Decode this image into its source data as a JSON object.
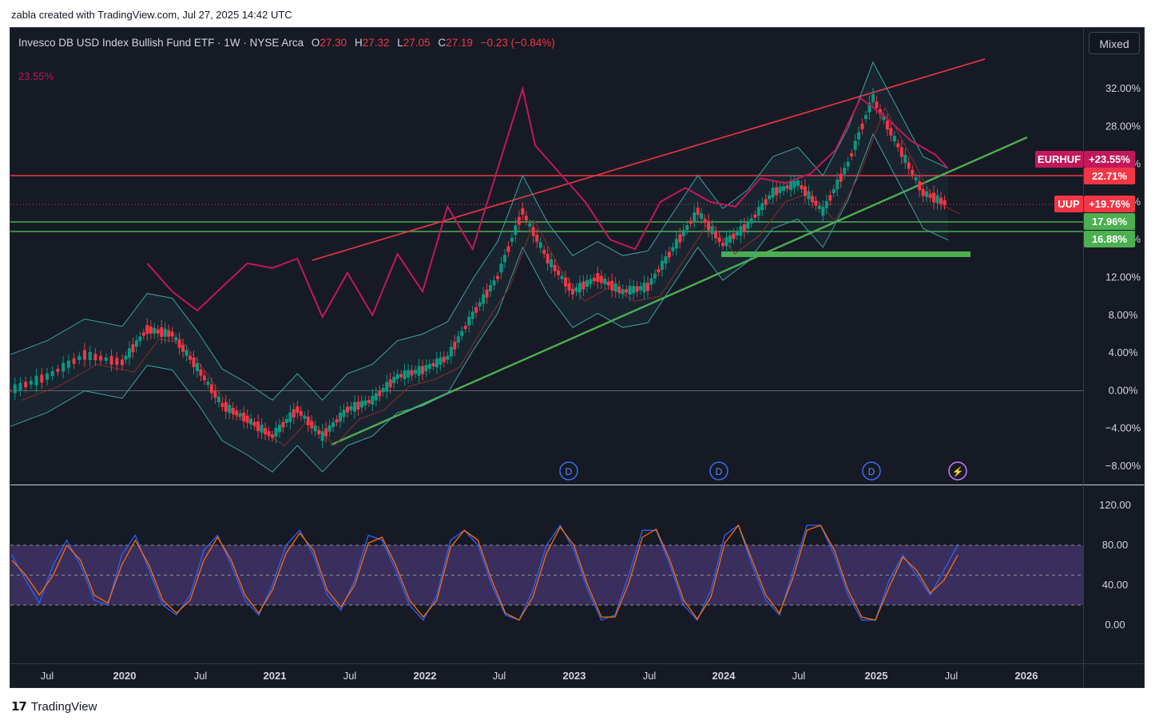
{
  "caption": "zabla created with TradingView.com, Jul 27, 2025 14:42 UTC",
  "brand": "TradingView",
  "header": {
    "symbol_title": "Invesco DB USD Index Bullish Fund ETF · 1W · NYSE Arca",
    "open_label": "O",
    "open": "27.30",
    "high_label": "H",
    "high": "27.32",
    "low_label": "L",
    "low": "27.05",
    "close_label": "C",
    "close": "27.19",
    "change": "−0.23 (−0.84%)",
    "overlay_pct": "23.55%",
    "mode_button": "Mixed"
  },
  "colors": {
    "background": "#161a25",
    "up_candle": "#089981",
    "down_candle": "#f23645",
    "eurhuf_line": "#c2185b",
    "resistance_line": "#f23645",
    "support_line": "#4caf50",
    "bb_basis": "#8b2b2b",
    "bb_band": "#3aa4a0",
    "stoch_k": "#2962ff",
    "stoch_d": "#ff6d00",
    "stoch_band": "#7e57c2"
  },
  "chart_data": [
    {
      "type": "line",
      "title": "Invesco DB USD Index Bullish Fund ETF · 1W · NYSE Arca",
      "y_unit": "%",
      "ylim": [
        -9.5,
        40
      ],
      "y_ticks": [
        "32.00%",
        "28.00%",
        "24.00%",
        "20.00%",
        "16.00%",
        "12.00%",
        "8.00%",
        "4.00%",
        "0.00%",
        "−4.00%",
        "−8.00%"
      ],
      "x_ticks": [
        "Jul",
        "2020",
        "Jul",
        "2021",
        "Jul",
        "2022",
        "Jul",
        "2023",
        "Jul",
        "2024",
        "Jul",
        "2025",
        "Jul",
        "2026"
      ],
      "series": [
        {
          "name": "UUP",
          "style": "candles",
          "points": [
            [
              "2019-04",
              0.0
            ],
            [
              "2019-07",
              1.5
            ],
            [
              "2019-10",
              3.8
            ],
            [
              "2020-01",
              3.0
            ],
            [
              "2020-03",
              6.5
            ],
            [
              "2020-05",
              6.0
            ],
            [
              "2020-07",
              2.5
            ],
            [
              "2020-09",
              -1.5
            ],
            [
              "2020-11",
              -3.0
            ],
            [
              "2021-01",
              -4.8
            ],
            [
              "2021-03",
              -2.0
            ],
            [
              "2021-05",
              -4.8
            ],
            [
              "2021-07",
              -2.0
            ],
            [
              "2021-09",
              -1.0
            ],
            [
              "2021-11",
              1.5
            ],
            [
              "2022-01",
              2.2
            ],
            [
              "2022-03",
              3.5
            ],
            [
              "2022-05",
              8.0
            ],
            [
              "2022-07",
              12.0
            ],
            [
              "2022-09",
              19.0
            ],
            [
              "2022-11",
              14.0
            ],
            [
              "2023-01",
              10.5
            ],
            [
              "2023-03",
              12.0
            ],
            [
              "2023-05",
              10.5
            ],
            [
              "2023-07",
              11.0
            ],
            [
              "2023-09",
              15.0
            ],
            [
              "2023-11",
              19.0
            ],
            [
              "2024-01",
              15.5
            ],
            [
              "2024-03",
              17.5
            ],
            [
              "2024-05",
              21.0
            ],
            [
              "2024-07",
              22.0
            ],
            [
              "2024-09",
              19.0
            ],
            [
              "2024-11",
              24.0
            ],
            [
              "2025-01",
              31.0
            ],
            [
              "2025-03",
              26.0
            ],
            [
              "2025-05",
              21.0
            ],
            [
              "2025-07",
              19.76
            ]
          ]
        },
        {
          "name": "EURHUF",
          "style": "line",
          "points": [
            [
              "2020-03",
              13.5
            ],
            [
              "2020-05",
              10.5
            ],
            [
              "2020-07",
              8.5
            ],
            [
              "2020-09",
              11.0
            ],
            [
              "2020-11",
              13.5
            ],
            [
              "2021-01",
              13.0
            ],
            [
              "2021-03",
              14.0
            ],
            [
              "2021-05",
              7.8
            ],
            [
              "2021-07",
              12.5
            ],
            [
              "2021-09",
              8.0
            ],
            [
              "2021-11",
              14.5
            ],
            [
              "2022-01",
              10.5
            ],
            [
              "2022-03",
              19.5
            ],
            [
              "2022-05",
              15.0
            ],
            [
              "2022-07",
              23.5
            ],
            [
              "2022-09",
              32.0
            ],
            [
              "2022-10",
              26.0
            ],
            [
              "2022-12",
              23.0
            ],
            [
              "2023-02",
              20.0
            ],
            [
              "2023-04",
              16.0
            ],
            [
              "2023-06",
              15.0
            ],
            [
              "2023-08",
              20.0
            ],
            [
              "2023-10",
              21.5
            ],
            [
              "2023-12",
              20.0
            ],
            [
              "2024-02",
              19.5
            ],
            [
              "2024-04",
              22.5
            ],
            [
              "2024-06",
              22.0
            ],
            [
              "2024-08",
              23.0
            ],
            [
              "2024-10",
              25.5
            ],
            [
              "2024-12",
              31.0
            ],
            [
              "2025-02",
              29.0
            ],
            [
              "2025-04",
              26.5
            ],
            [
              "2025-06",
              25.0
            ],
            [
              "2025-07",
              23.55
            ]
          ]
        }
      ],
      "price_labels": [
        {
          "name": "EURHUF",
          "value": "+23.55%"
        },
        {
          "name": "",
          "value": "22.71%"
        },
        {
          "name": "UUP",
          "value": "+19.76%"
        },
        {
          "name": "",
          "value": "17.96%"
        },
        {
          "name": "",
          "value": "16.88%"
        }
      ],
      "horizontal_levels": [
        22.71,
        17.96,
        16.88
      ],
      "dividend_markers": [
        "D",
        "D",
        "D",
        "⚡"
      ]
    },
    {
      "type": "line",
      "title": "",
      "ylim": [
        -20,
        140
      ],
      "y_ticks": [
        "120.00",
        "80.00",
        "40.00",
        "0.00"
      ],
      "band": [
        20,
        80
      ],
      "series": [
        {
          "name": "",
          "values": [
            70,
            45,
            22,
            60,
            85,
            60,
            25,
            20,
            70,
            90,
            55,
            20,
            10,
            30,
            75,
            90,
            60,
            25,
            10,
            40,
            80,
            95,
            70,
            30,
            15,
            45,
            90,
            85,
            55,
            20,
            5,
            30,
            85,
            95,
            80,
            40,
            10,
            5,
            35,
            80,
            100,
            75,
            35,
            5,
            10,
            50,
            95,
            95,
            60,
            20,
            5,
            35,
            90,
            100,
            60,
            25,
            10,
            55,
            100,
            100,
            70,
            30,
            5,
            5,
            45,
            70,
            50,
            30,
            55,
            80
          ]
        },
        {
          "name": "",
          "values": [
            65,
            50,
            30,
            50,
            80,
            65,
            30,
            22,
            60,
            85,
            60,
            25,
            12,
            25,
            65,
            88,
            65,
            30,
            12,
            35,
            72,
            92,
            75,
            35,
            18,
            40,
            82,
            88,
            60,
            25,
            8,
            25,
            78,
            95,
            85,
            45,
            12,
            5,
            28,
            72,
            98,
            80,
            40,
            8,
            8,
            42,
            88,
            96,
            65,
            25,
            6,
            28,
            82,
            100,
            65,
            30,
            12,
            48,
            95,
            100,
            75,
            35,
            8,
            5,
            38,
            68,
            55,
            32,
            45,
            70
          ]
        }
      ]
    }
  ]
}
